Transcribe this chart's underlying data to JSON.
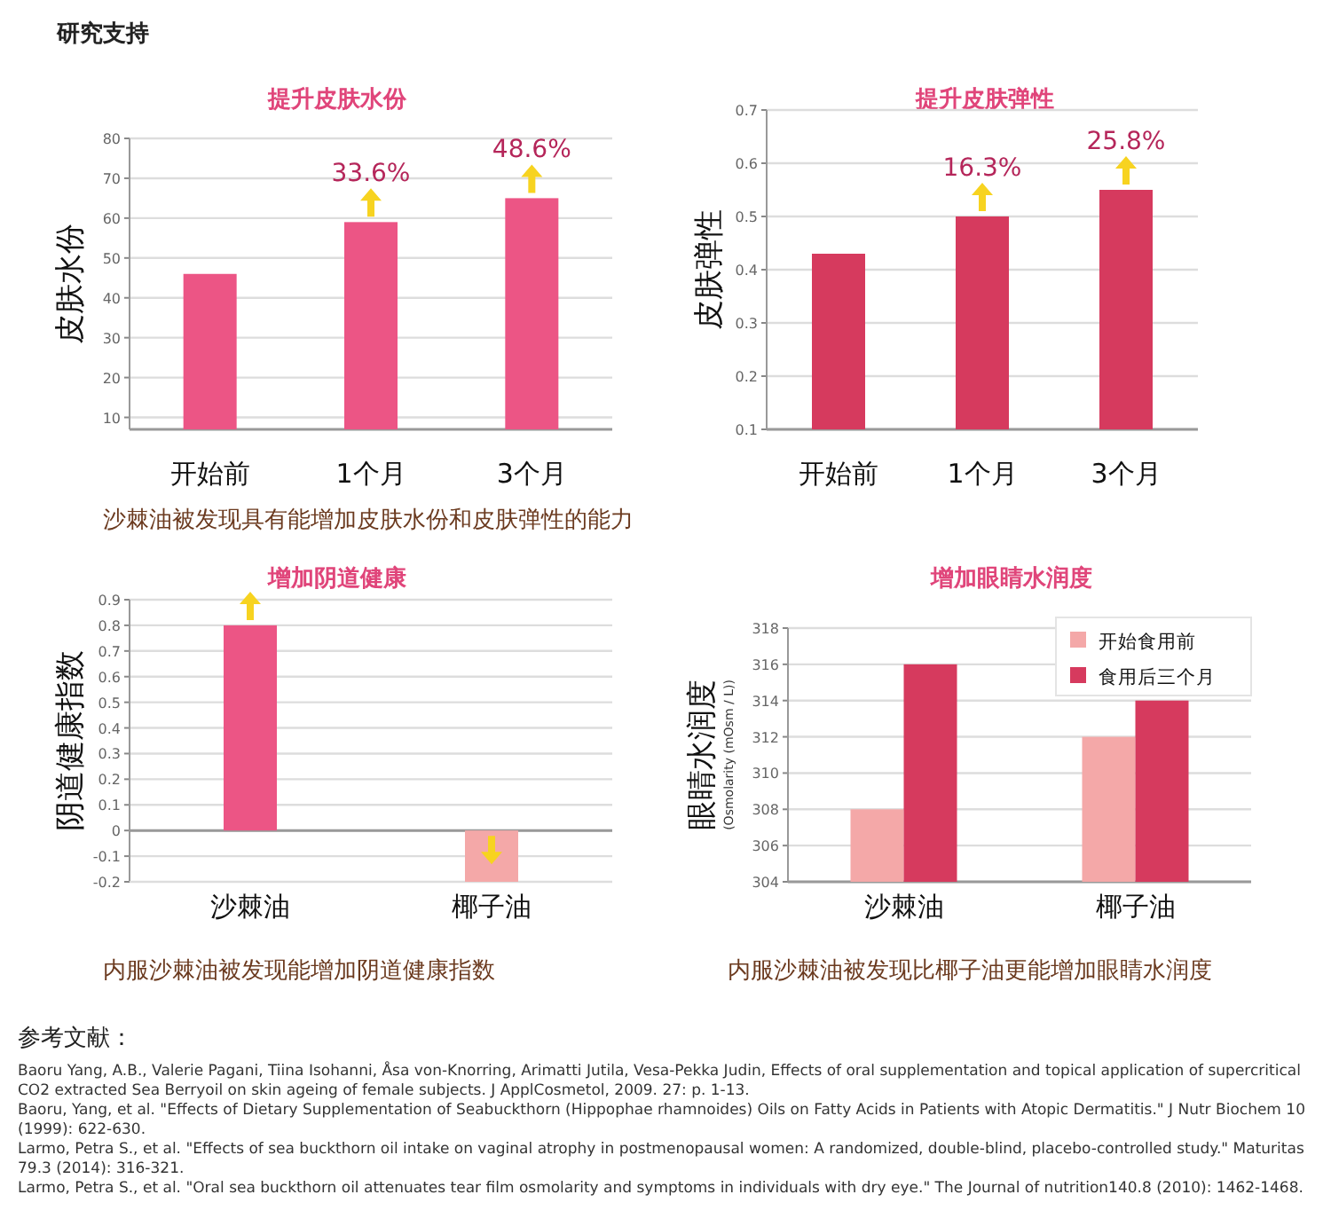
{
  "chart_data": [
    {
      "type": "other",
      "title": "研究支持"
    },
    {
      "type": "bar",
      "title": "提升皮肤水份",
      "ylabel": "皮肤水份",
      "categories": [
        "开始前",
        "1个月",
        "3个月"
      ],
      "values": [
        46,
        59,
        65
      ],
      "color": "#ec5585",
      "ylim": [
        7,
        80
      ],
      "yticks": [
        10,
        20,
        30,
        40,
        50,
        60,
        70,
        80
      ],
      "grid": "y",
      "annotations": [
        {
          "text": "33.6%",
          "x": "1个月",
          "y": 59
        },
        {
          "text": "48.6%",
          "x": "3个月",
          "y": 65
        },
        "沙棘油被发现具有能增加皮肤水份和皮肤弹性的能力"
      ]
    },
    {
      "type": "bar",
      "title": "提升皮肤弹性",
      "ylabel": "皮肤弹性",
      "categories": [
        "开始前",
        "1个月",
        "3个月"
      ],
      "values": [
        0.43,
        0.5,
        0.55
      ],
      "color": "#d63a5e",
      "ylim": [
        0.1,
        0.7
      ],
      "yticks": [
        0.1,
        0.2,
        0.3,
        0.4,
        0.5,
        0.6,
        0.7
      ],
      "grid": "y",
      "annotations": [
        {
          "text": "16.3%",
          "x": "1个月",
          "y": 0.5
        },
        {
          "text": "25.8%",
          "x": "3个月",
          "y": 0.55
        }
      ]
    },
    {
      "type": "bar",
      "title": "增加阴道健康",
      "ylabel": "阴道健康指数",
      "categories": [
        "沙棘油",
        "椰子油"
      ],
      "values": [
        0.8,
        -0.2
      ],
      "colors": [
        "#ec5585",
        "#f4a8a8"
      ],
      "ylim": [
        -0.2,
        0.9
      ],
      "yticks": [
        -0.2,
        -0.1,
        0,
        0.1,
        0.2,
        0.3,
        0.4,
        0.5,
        0.6,
        0.7,
        0.8,
        0.9
      ],
      "grid": "y",
      "annotations": [
        "内服沙棘油被发现能增加阴道健康指数"
      ]
    },
    {
      "type": "bar",
      "title": "增加眼睛水润度",
      "ylabel": "眼睛水润度",
      "categories": [
        "沙棘油",
        "椰子油"
      ],
      "series": [
        {
          "name": "开始食用前",
          "color": "#f4a8a8",
          "values": [
            308,
            312
          ]
        },
        {
          "name": "食用后三个月",
          "color": "#d63a5e",
          "values": [
            316,
            314
          ]
        }
      ],
      "ylim": [
        304,
        318
      ],
      "yticks": [
        304,
        306,
        308,
        310,
        312,
        314,
        316,
        318
      ],
      "grid": "y",
      "legend": "top right",
      "annotations": [
        "(Osmolarity (mOsm / L))",
        "内服沙棘油被发现比椰子油更能增加眼睛水润度"
      ]
    },
    {
      "type": "other",
      "title": "参考文献：",
      "annotations": [
        "Baoru Yang, A.B., Valerie Pagani, Tiina Isohanni, Åsa von-Knorring, Arimatti Jutila, Vesa-Pekka Judin, Effects of oral supplementation and topical application of supercritical CO2 extracted Sea Berryoil on skin ageing of female subjects. J ApplCosmetol, 2009. 27: p. 1-13.",
        "Baoru, Yang, et al. \"Effects of Dietary Supplementation of Seabuckthorn (Hippophae rhamnoides) Oils on Fatty Acids in Patients with Atopic Dermatitis.\" J Nutr Biochem 10 (1999): 622-630.",
        "Larmo, Petra S., et al. \"Effects of sea buckthorn oil intake on vaginal atrophy in postmenopausal women: A randomized, double-blind, placebo-controlled study.\" Maturitas 79.3 (2014): 316-321.",
        "Larmo, Petra S., et al. \"Oral sea buckthorn oil attenuates tear film osmolarity and symptoms in individuals with dry eye.\" The Journal of nutrition140.8 (2010): 1462-1468."
      ]
    }
  ]
}
